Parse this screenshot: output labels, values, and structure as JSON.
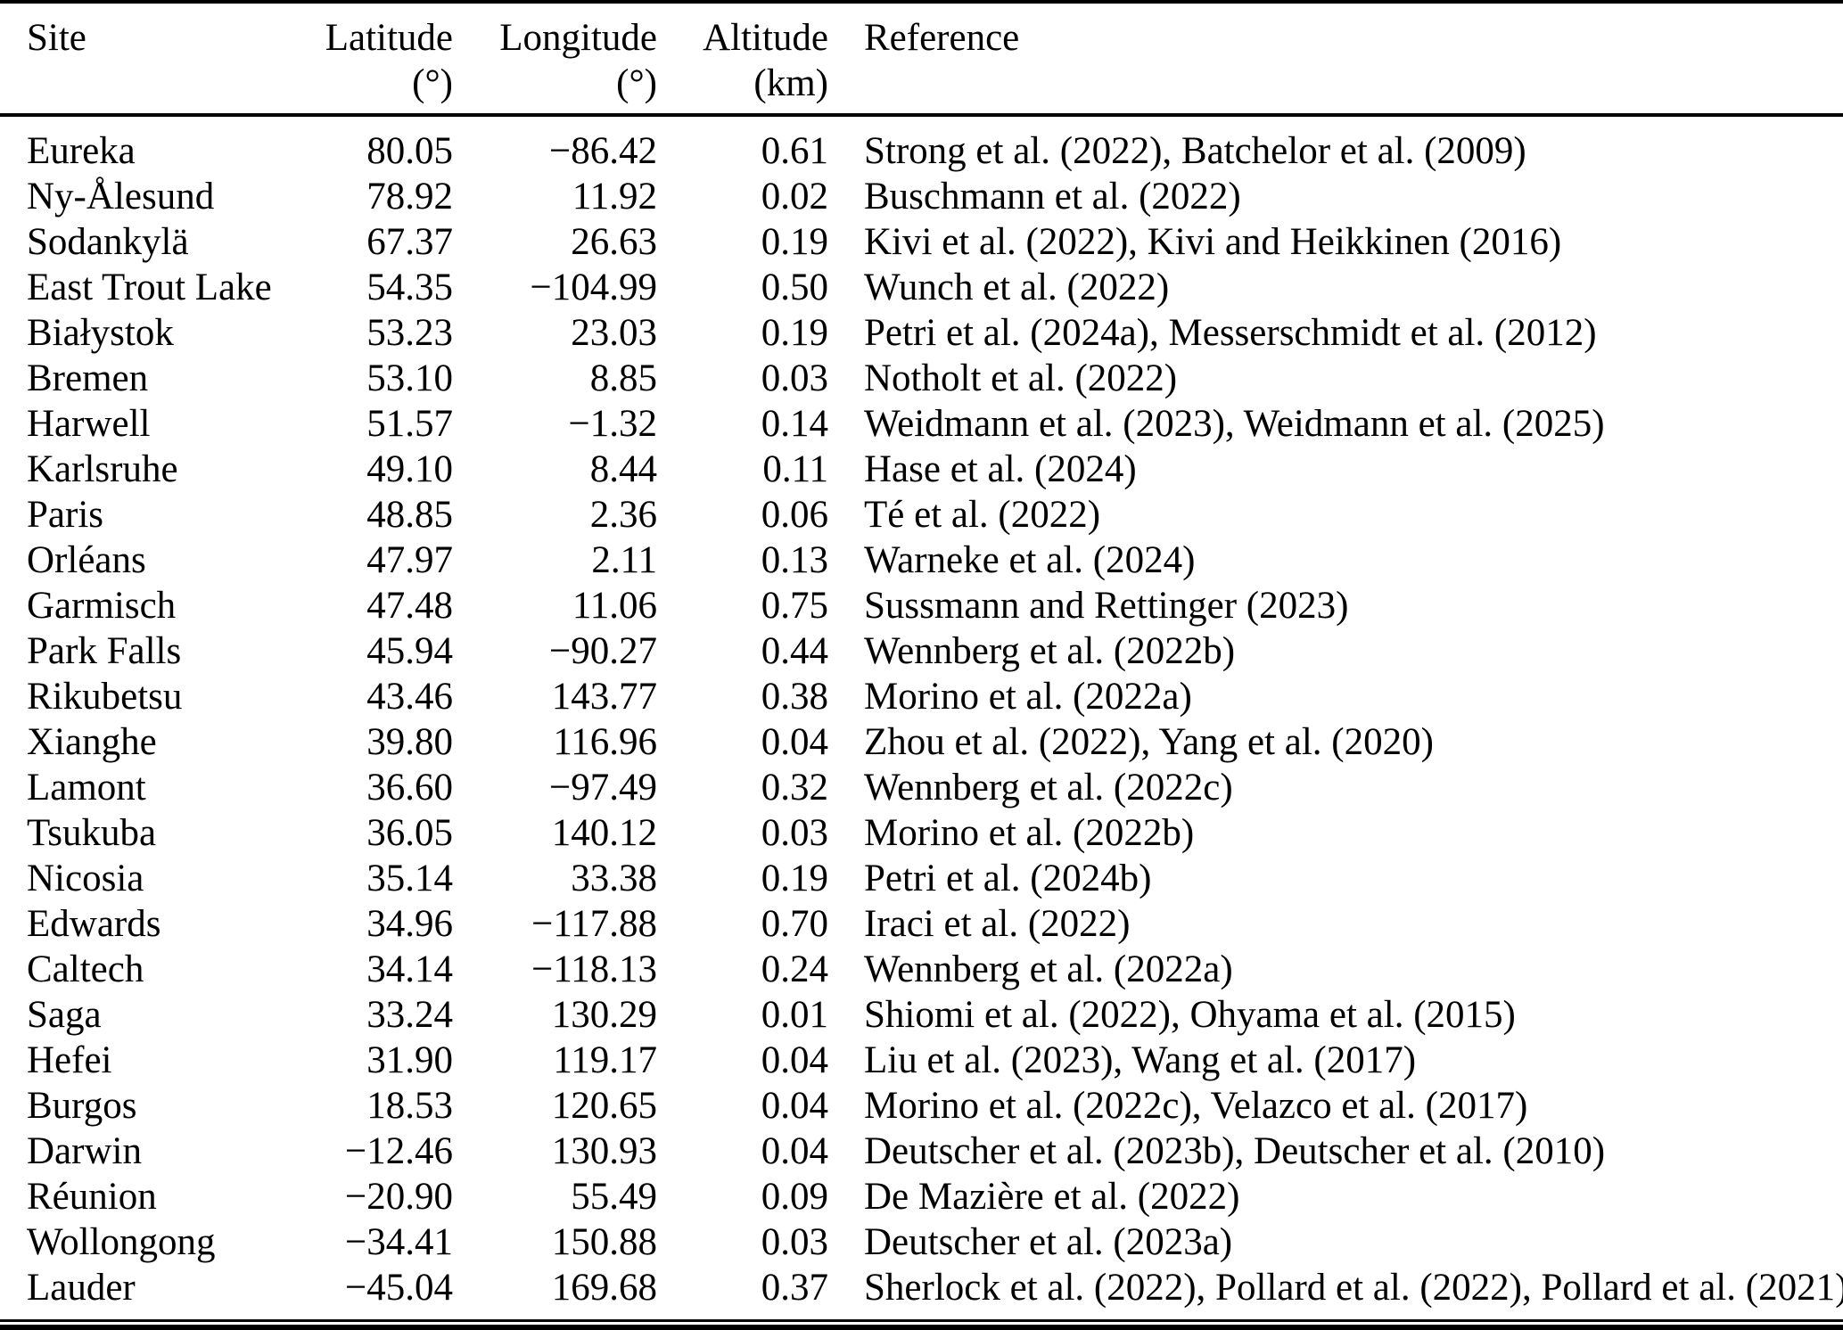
{
  "colors": {
    "background": "#ffffff",
    "text": "#000000",
    "rule": "#000000"
  },
  "table": {
    "headers": {
      "site": "Site",
      "latitude": "Latitude",
      "latitude_unit": "(°)",
      "longitude": "Longitude",
      "longitude_unit": "(°)",
      "altitude": "Altitude",
      "altitude_unit": "(km)",
      "reference": "Reference"
    },
    "rows": [
      {
        "site": "Eureka",
        "latitude": "80.05",
        "longitude": "−86.42",
        "altitude": "0.61",
        "reference": "Strong et al. (2022), Batchelor et al. (2009)"
      },
      {
        "site": "Ny-Ålesund",
        "latitude": "78.92",
        "longitude": "11.92",
        "altitude": "0.02",
        "reference": "Buschmann et al. (2022)"
      },
      {
        "site": "Sodankylä",
        "latitude": "67.37",
        "longitude": "26.63",
        "altitude": "0.19",
        "reference": "Kivi et al. (2022), Kivi and Heikkinen (2016)"
      },
      {
        "site": "East Trout Lake",
        "latitude": "54.35",
        "longitude": "−104.99",
        "altitude": "0.50",
        "reference": "Wunch et al. (2022)"
      },
      {
        "site": "Białystok",
        "latitude": "53.23",
        "longitude": "23.03",
        "altitude": "0.19",
        "reference": "Petri et al. (2024a), Messerschmidt et al. (2012)"
      },
      {
        "site": "Bremen",
        "latitude": "53.10",
        "longitude": "8.85",
        "altitude": "0.03",
        "reference": "Notholt et al. (2022)"
      },
      {
        "site": "Harwell",
        "latitude": "51.57",
        "longitude": "−1.32",
        "altitude": "0.14",
        "reference": "Weidmann et al. (2023), Weidmann et al. (2025)"
      },
      {
        "site": "Karlsruhe",
        "latitude": "49.10",
        "longitude": "8.44",
        "altitude": "0.11",
        "reference": "Hase et al. (2024)"
      },
      {
        "site": "Paris",
        "latitude": "48.85",
        "longitude": "2.36",
        "altitude": "0.06",
        "reference": "Té et al. (2022)"
      },
      {
        "site": "Orléans",
        "latitude": "47.97",
        "longitude": "2.11",
        "altitude": "0.13",
        "reference": "Warneke et al. (2024)"
      },
      {
        "site": "Garmisch",
        "latitude": "47.48",
        "longitude": "11.06",
        "altitude": "0.75",
        "reference": "Sussmann and Rettinger (2023)"
      },
      {
        "site": "Park Falls",
        "latitude": "45.94",
        "longitude": "−90.27",
        "altitude": "0.44",
        "reference": "Wennberg et al. (2022b)"
      },
      {
        "site": "Rikubetsu",
        "latitude": "43.46",
        "longitude": "143.77",
        "altitude": "0.38",
        "reference": "Morino et al. (2022a)"
      },
      {
        "site": "Xianghe",
        "latitude": "39.80",
        "longitude": "116.96",
        "altitude": "0.04",
        "reference": "Zhou et al. (2022), Yang et al. (2020)"
      },
      {
        "site": "Lamont",
        "latitude": "36.60",
        "longitude": "−97.49",
        "altitude": "0.32",
        "reference": "Wennberg et al. (2022c)"
      },
      {
        "site": "Tsukuba",
        "latitude": "36.05",
        "longitude": "140.12",
        "altitude": "0.03",
        "reference": "Morino et al. (2022b)"
      },
      {
        "site": "Nicosia",
        "latitude": "35.14",
        "longitude": "33.38",
        "altitude": "0.19",
        "reference": "Petri et al. (2024b)"
      },
      {
        "site": "Edwards",
        "latitude": "34.96",
        "longitude": "−117.88",
        "altitude": "0.70",
        "reference": "Iraci et al. (2022)"
      },
      {
        "site": "Caltech",
        "latitude": "34.14",
        "longitude": "−118.13",
        "altitude": "0.24",
        "reference": "Wennberg et al. (2022a)"
      },
      {
        "site": "Saga",
        "latitude": "33.24",
        "longitude": "130.29",
        "altitude": "0.01",
        "reference": "Shiomi et al. (2022), Ohyama et al. (2015)"
      },
      {
        "site": "Hefei",
        "latitude": "31.90",
        "longitude": "119.17",
        "altitude": "0.04",
        "reference": "Liu et al. (2023), Wang et al. (2017)"
      },
      {
        "site": "Burgos",
        "latitude": "18.53",
        "longitude": "120.65",
        "altitude": "0.04",
        "reference": "Morino et al. (2022c), Velazco et al. (2017)"
      },
      {
        "site": "Darwin",
        "latitude": "−12.46",
        "longitude": "130.93",
        "altitude": "0.04",
        "reference": "Deutscher et al. (2023b), Deutscher et al. (2010)"
      },
      {
        "site": "Réunion",
        "latitude": "−20.90",
        "longitude": "55.49",
        "altitude": "0.09",
        "reference": "De Mazière et al. (2022)"
      },
      {
        "site": "Wollongong",
        "latitude": "−34.41",
        "longitude": "150.88",
        "altitude": "0.03",
        "reference": "Deutscher et al. (2023a)"
      },
      {
        "site": "Lauder",
        "latitude": "−45.04",
        "longitude": "169.68",
        "altitude": "0.37",
        "reference": "Sherlock et al. (2022), Pollard et al. (2022), Pollard et al. (2021)"
      }
    ]
  }
}
